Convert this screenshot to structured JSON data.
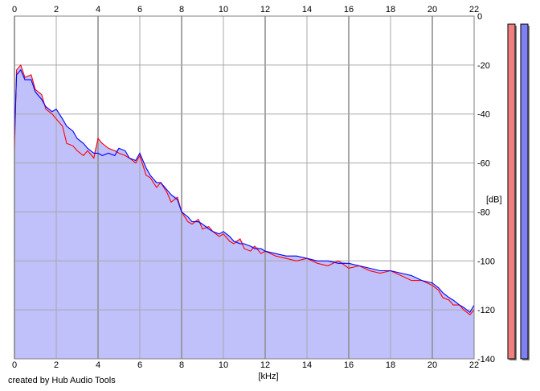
{
  "credit": "created by Hub Audio Tools",
  "chart_data": {
    "type": "area",
    "xlabel": "[kHz]",
    "ylabel": "[dB]",
    "xlim": [
      0,
      22
    ],
    "ylim": [
      -140,
      0
    ],
    "x_ticks": [
      0,
      2,
      4,
      6,
      8,
      10,
      12,
      14,
      16,
      18,
      20,
      22
    ],
    "y_ticks": [
      0,
      -20,
      -40,
      -60,
      -80,
      -100,
      -120,
      -140
    ],
    "grid": true,
    "fill_color": "#c0c0fa",
    "series": [
      {
        "color": "#ff0000",
        "x": [
          0,
          0.1,
          0.3,
          0.5,
          0.8,
          1,
          1.3,
          1.5,
          1.8,
          2,
          2.3,
          2.5,
          2.8,
          3,
          3.3,
          3.5,
          3.8,
          4,
          4.2,
          4.5,
          4.8,
          5,
          5.3,
          5.5,
          5.8,
          6,
          6.3,
          6.5,
          6.8,
          7,
          7.3,
          7.5,
          7.8,
          8,
          8.3,
          8.5,
          8.8,
          9,
          9.3,
          9.5,
          9.8,
          10,
          10.3,
          10.5,
          10.8,
          11,
          11.3,
          11.5,
          11.8,
          12,
          12.5,
          13,
          13.5,
          14,
          14.5,
          15,
          15.5,
          16,
          16.5,
          17,
          17.5,
          18,
          18.5,
          19,
          19.5,
          20,
          20.3,
          20.5,
          20.8,
          21,
          21.3,
          21.5,
          21.8,
          22
        ],
        "values": [
          -55,
          -22,
          -20,
          -25,
          -24,
          -30,
          -32,
          -38,
          -40,
          -42,
          -45,
          -52,
          -53,
          -55,
          -57,
          -55,
          -58,
          -50,
          -52,
          -54,
          -55,
          -56,
          -57,
          -58,
          -60,
          -57,
          -65,
          -66,
          -70,
          -68,
          -72,
          -76,
          -74,
          -80,
          -84,
          -85,
          -83,
          -87,
          -86,
          -88,
          -90,
          -89,
          -92,
          -93,
          -91,
          -95,
          -96,
          -94,
          -97,
          -96,
          -98,
          -99,
          -100,
          -99,
          -101,
          -102,
          -100,
          -103,
          -102,
          -104,
          -105,
          -104,
          -106,
          -108,
          -108,
          -110,
          -112,
          -115,
          -116,
          -118,
          -118,
          -120,
          -122,
          -120
        ]
      },
      {
        "color": "#0000ff",
        "x": [
          0,
          0.1,
          0.3,
          0.5,
          0.8,
          1,
          1.3,
          1.5,
          1.8,
          2,
          2.3,
          2.5,
          2.8,
          3,
          3.3,
          3.5,
          3.8,
          4,
          4.2,
          4.5,
          4.8,
          5,
          5.3,
          5.5,
          5.8,
          6,
          6.3,
          6.5,
          6.8,
          7,
          7.3,
          7.5,
          7.8,
          8,
          8.3,
          8.5,
          8.8,
          9,
          9.3,
          9.5,
          9.8,
          10,
          10.3,
          10.5,
          10.8,
          11,
          11.3,
          11.5,
          11.8,
          12,
          12.5,
          13,
          13.5,
          14,
          14.5,
          15,
          15.5,
          16,
          16.5,
          17,
          17.5,
          18,
          18.5,
          19,
          19.5,
          20,
          20.3,
          20.5,
          20.8,
          21,
          21.3,
          21.5,
          21.8,
          22
        ],
        "values": [
          -50,
          -24,
          -22,
          -26,
          -26,
          -31,
          -34,
          -37,
          -39,
          -38,
          -42,
          -45,
          -47,
          -50,
          -52,
          -54,
          -56,
          -56,
          -57,
          -56,
          -57,
          -54,
          -55,
          -58,
          -59,
          -56,
          -62,
          -65,
          -68,
          -68,
          -71,
          -73,
          -75,
          -80,
          -82,
          -84,
          -84,
          -85,
          -87,
          -88,
          -89,
          -88,
          -90,
          -92,
          -93,
          -93,
          -94,
          -95,
          -95,
          -96,
          -97,
          -98,
          -98,
          -99,
          -100,
          -100,
          -101,
          -101,
          -102,
          -103,
          -104,
          -104,
          -105,
          -106,
          -108,
          -109,
          -111,
          -113,
          -115,
          -116,
          -118,
          -119,
          -121,
          -118
        ]
      }
    ],
    "level_meters": [
      {
        "color": "#f08080",
        "value_db": 0
      },
      {
        "color": "#8080f0",
        "value_db": 0
      }
    ]
  }
}
